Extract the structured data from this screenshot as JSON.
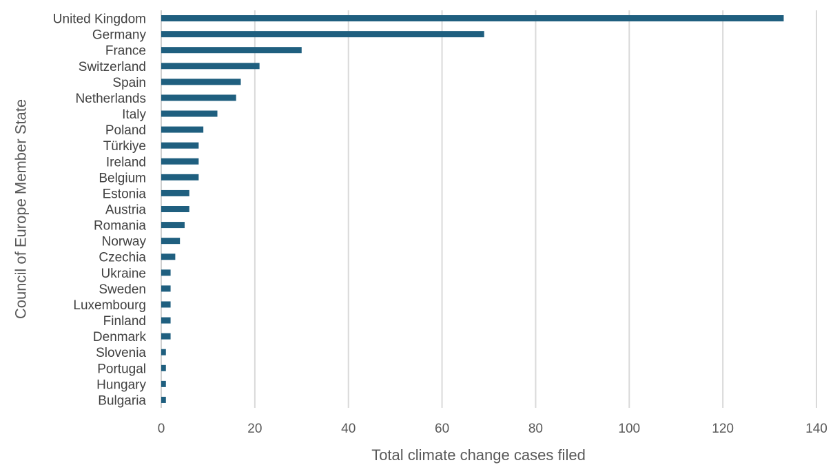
{
  "chart_data": {
    "type": "bar",
    "orientation": "horizontal",
    "title": "",
    "xlabel": "Total climate change cases filed",
    "ylabel": "Council of Europe Member State",
    "xlim": [
      0,
      140
    ],
    "xticks": [
      0,
      20,
      40,
      60,
      80,
      100,
      120,
      140
    ],
    "grid": true,
    "legend": "none",
    "bar_color": "#1f5f7f",
    "categories": [
      "United Kingdom",
      "Germany",
      "France",
      "Switzerland",
      "Spain",
      "Netherlands",
      "Italy",
      "Poland",
      "Türkiye",
      "Ireland",
      "Belgium",
      "Estonia",
      "Austria",
      "Romania",
      "Norway",
      "Czechia",
      "Ukraine",
      "Sweden",
      "Luxembourg",
      "Finland",
      "Denmark",
      "Slovenia",
      "Portugal",
      "Hungary",
      "Bulgaria"
    ],
    "values": [
      133,
      69,
      30,
      21,
      17,
      16,
      12,
      9,
      8,
      8,
      8,
      6,
      6,
      5,
      4,
      3,
      2,
      2,
      2,
      2,
      2,
      1,
      1,
      1,
      1
    ]
  }
}
